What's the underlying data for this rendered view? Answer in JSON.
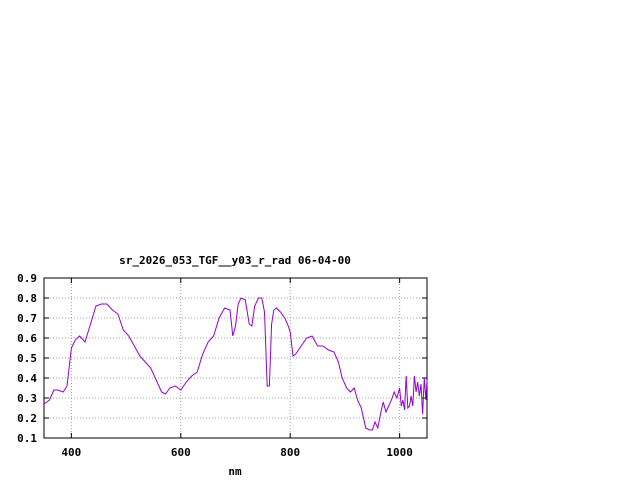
{
  "chart_data": {
    "type": "line",
    "title": "sr_2026_053_TGF__y03_r_rad 06-04-00",
    "xlabel": "nm",
    "ylabel": "",
    "xlim": [
      350,
      1050
    ],
    "ylim": [
      0.1,
      0.9
    ],
    "grid": true,
    "x_ticks": [
      400,
      600,
      800,
      1000
    ],
    "x_tick_labels": [
      "400",
      "600",
      "800",
      "1000"
    ],
    "y_ticks": [
      0.1,
      0.2,
      0.3,
      0.4,
      0.5,
      0.6,
      0.7,
      0.8,
      0.9
    ],
    "y_tick_labels": [
      "0.1",
      "0.2",
      "0.3",
      "0.4",
      "0.5",
      "0.6",
      "0.7",
      "0.8",
      "0.9"
    ],
    "line_color": "#9400d3",
    "series": [
      {
        "x": [
          350,
          360,
          368,
          375,
          385,
          392,
          400,
          407,
          415,
          425,
          435,
          445,
          455,
          465,
          475,
          485,
          495,
          505,
          515,
          525,
          535,
          545,
          555,
          565,
          572,
          580,
          590,
          600,
          610,
          620,
          630,
          640,
          650,
          660,
          670,
          680,
          690,
          695,
          700,
          705,
          710,
          718,
          725,
          730,
          735,
          742,
          748,
          753,
          758,
          762,
          766,
          770,
          775,
          782,
          790,
          795,
          800,
          805,
          810,
          820,
          830,
          840,
          850,
          860,
          870,
          880,
          888,
          895,
          903,
          910,
          917,
          923,
          930,
          938,
          945,
          950,
          955,
          960,
          965,
          970,
          975,
          980,
          985,
          990,
          995,
          1000,
          1003,
          1006,
          1009,
          1012,
          1015,
          1018,
          1021,
          1024,
          1027,
          1030,
          1033,
          1036,
          1039,
          1042,
          1045,
          1048,
          1050
        ],
        "y": [
          0.27,
          0.29,
          0.34,
          0.34,
          0.33,
          0.36,
          0.55,
          0.59,
          0.61,
          0.58,
          0.67,
          0.76,
          0.77,
          0.77,
          0.74,
          0.72,
          0.64,
          0.61,
          0.56,
          0.51,
          0.48,
          0.45,
          0.39,
          0.33,
          0.32,
          0.35,
          0.36,
          0.34,
          0.38,
          0.41,
          0.43,
          0.52,
          0.58,
          0.61,
          0.7,
          0.75,
          0.74,
          0.61,
          0.66,
          0.77,
          0.8,
          0.79,
          0.67,
          0.66,
          0.76,
          0.8,
          0.8,
          0.73,
          0.36,
          0.36,
          0.67,
          0.74,
          0.75,
          0.73,
          0.7,
          0.67,
          0.63,
          0.51,
          0.52,
          0.56,
          0.6,
          0.61,
          0.56,
          0.56,
          0.54,
          0.53,
          0.48,
          0.4,
          0.35,
          0.33,
          0.35,
          0.29,
          0.25,
          0.15,
          0.14,
          0.14,
          0.18,
          0.15,
          0.22,
          0.28,
          0.23,
          0.26,
          0.29,
          0.33,
          0.3,
          0.35,
          0.26,
          0.29,
          0.24,
          0.41,
          0.25,
          0.26,
          0.31,
          0.26,
          0.41,
          0.33,
          0.38,
          0.31,
          0.37,
          0.22,
          0.4,
          0.29,
          0.39
        ]
      }
    ]
  }
}
